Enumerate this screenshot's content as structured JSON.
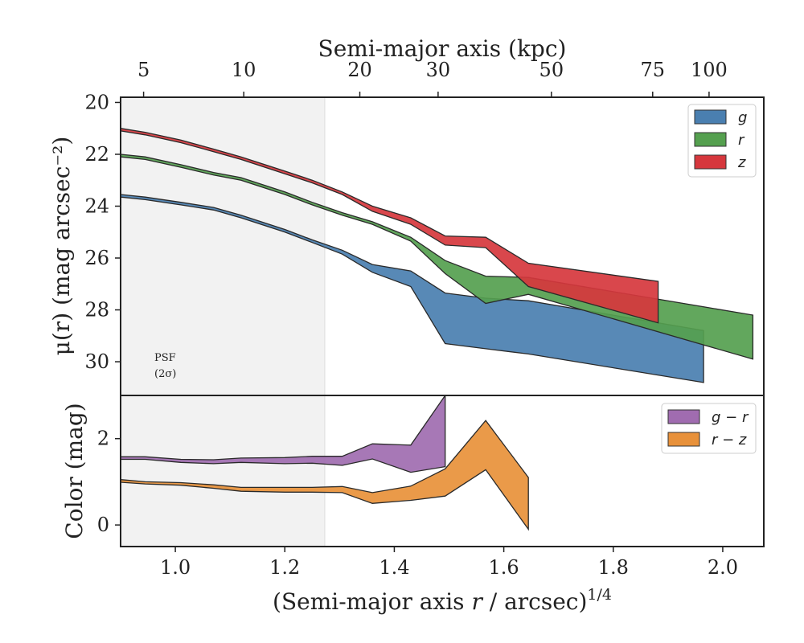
{
  "chart_data": [
    {
      "type": "area",
      "panel": "top",
      "top_xlabel": "Semi-major axis (kpc)",
      "top_xticks": [
        {
          "label": "5",
          "x": 0.942
        },
        {
          "label": "10",
          "x": 1.125
        },
        {
          "label": "20",
          "x": 1.337
        },
        {
          "label": "30",
          "x": 1.48
        },
        {
          "label": "50",
          "x": 1.687
        },
        {
          "label": "75",
          "x": 1.872
        },
        {
          "label": "100",
          "x": 1.975
        }
      ],
      "xlabel_main": "(Semi-major axis ",
      "xlabel_var": "r",
      "xlabel_unit": " / arcsec)",
      "xlabel_sup": "1/4",
      "ylabel": "μ(r) (mag arcsec⁻²)",
      "xlim": [
        0.9,
        2.075
      ],
      "ylim": [
        31.3,
        19.8
      ],
      "x_ticks": [
        "1.0",
        "1.2",
        "1.4",
        "1.6",
        "1.8",
        "2.0"
      ],
      "y_ticks": [
        "20",
        "22",
        "24",
        "26",
        "28",
        "30"
      ],
      "psf_shade_x": [
        0.9,
        1.273
      ],
      "psf_label_line1": "PSF",
      "psf_label_line2": "(2σ)",
      "legend_position": "top-right",
      "series": [
        {
          "name": "g",
          "color": "#4a7fb0",
          "x": [
            0.9,
            0.945,
            1.01,
            1.07,
            1.12,
            1.2,
            1.25,
            1.305,
            1.36,
            1.43,
            1.493,
            1.567,
            1.645,
            1.965
          ],
          "y_upper": [
            23.55,
            23.65,
            23.85,
            24.05,
            24.35,
            24.9,
            25.3,
            25.7,
            26.25,
            26.5,
            27.35,
            27.55,
            27.65,
            28.8
          ],
          "y_lower": [
            23.65,
            23.75,
            23.95,
            24.15,
            24.45,
            25.0,
            25.4,
            25.85,
            26.55,
            27.1,
            29.3,
            29.5,
            29.7,
            30.8
          ]
        },
        {
          "name": "r",
          "color": "#55a04f",
          "x": [
            0.9,
            0.945,
            1.01,
            1.07,
            1.12,
            1.2,
            1.25,
            1.305,
            1.36,
            1.43,
            1.493,
            1.567,
            1.645,
            2.055
          ],
          "y_upper": [
            22.0,
            22.1,
            22.4,
            22.7,
            22.9,
            23.45,
            23.85,
            24.25,
            24.6,
            25.2,
            26.1,
            26.7,
            26.75,
            28.2
          ],
          "y_lower": [
            22.1,
            22.2,
            22.5,
            22.8,
            23.0,
            23.55,
            23.95,
            24.35,
            24.7,
            25.35,
            26.6,
            27.75,
            27.4,
            29.9
          ]
        },
        {
          "name": "z",
          "color": "#d6373d",
          "x": [
            0.9,
            0.945,
            1.01,
            1.07,
            1.12,
            1.2,
            1.25,
            1.305,
            1.36,
            1.43,
            1.493,
            1.567,
            1.645,
            1.882
          ],
          "y_upper": [
            21.0,
            21.15,
            21.45,
            21.8,
            22.1,
            22.65,
            23.0,
            23.45,
            24.0,
            24.45,
            25.15,
            25.2,
            26.2,
            26.9
          ],
          "y_lower": [
            21.1,
            21.25,
            21.55,
            21.9,
            22.2,
            22.75,
            23.1,
            23.55,
            24.2,
            24.7,
            25.5,
            25.6,
            27.1,
            28.5
          ]
        }
      ]
    },
    {
      "type": "area",
      "panel": "bottom",
      "ylabel": "Color (mag)",
      "xlim": [
        0.9,
        2.075
      ],
      "ylim": [
        -0.5,
        3.0
      ],
      "y_ticks": [
        "0",
        "2"
      ],
      "legend_position": "top-right",
      "series": [
        {
          "name": "g − r",
          "color": "#a06cb0",
          "x": [
            0.9,
            0.945,
            1.01,
            1.07,
            1.12,
            1.2,
            1.25,
            1.305,
            1.36,
            1.43,
            1.493
          ],
          "y_upper": [
            1.58,
            1.58,
            1.52,
            1.51,
            1.55,
            1.56,
            1.59,
            1.59,
            1.88,
            1.85,
            3.0
          ],
          "y_lower": [
            1.52,
            1.52,
            1.45,
            1.42,
            1.45,
            1.42,
            1.43,
            1.38,
            1.53,
            1.22,
            1.35
          ]
        },
        {
          "name": "r − z",
          "color": "#e8913a",
          "x": [
            0.9,
            0.945,
            1.01,
            1.07,
            1.12,
            1.2,
            1.25,
            1.305,
            1.36,
            1.43,
            1.493,
            1.567,
            1.645
          ],
          "y_upper": [
            1.05,
            1.0,
            0.98,
            0.93,
            0.87,
            0.87,
            0.87,
            0.89,
            0.75,
            0.9,
            1.3,
            2.42,
            1.1
          ],
          "y_lower": [
            0.99,
            0.95,
            0.92,
            0.85,
            0.78,
            0.76,
            0.76,
            0.75,
            0.5,
            0.57,
            0.67,
            1.28,
            -0.1
          ]
        }
      ]
    }
  ]
}
